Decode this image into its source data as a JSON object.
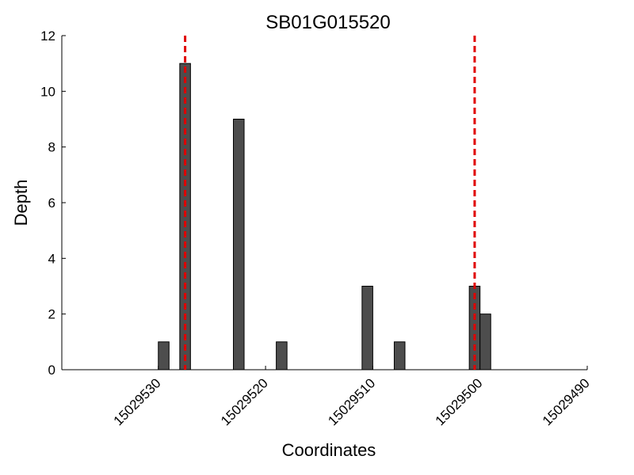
{
  "chart_data": {
    "type": "bar",
    "title": "SB01G015520",
    "x_label": "Coordinates",
    "y_label": "Depth",
    "x": [
      15029530,
      15029528,
      15029523,
      15029519,
      15029511,
      15029508,
      15029501,
      15029500
    ],
    "values": [
      1,
      11,
      9,
      1,
      3,
      1,
      3,
      2
    ],
    "color": "#4d4d4d",
    "vlines": [
      15029527.5,
      15029500.5
    ],
    "vline_color": "#e00000",
    "xlim": [
      15029539,
      15029490
    ],
    "xticks": [
      15029530,
      15029520,
      15029510,
      15029500,
      15029490
    ],
    "ylim": [
      0,
      12
    ],
    "yticks": [
      0,
      2,
      4,
      6,
      8,
      10,
      12
    ],
    "grid": false
  }
}
